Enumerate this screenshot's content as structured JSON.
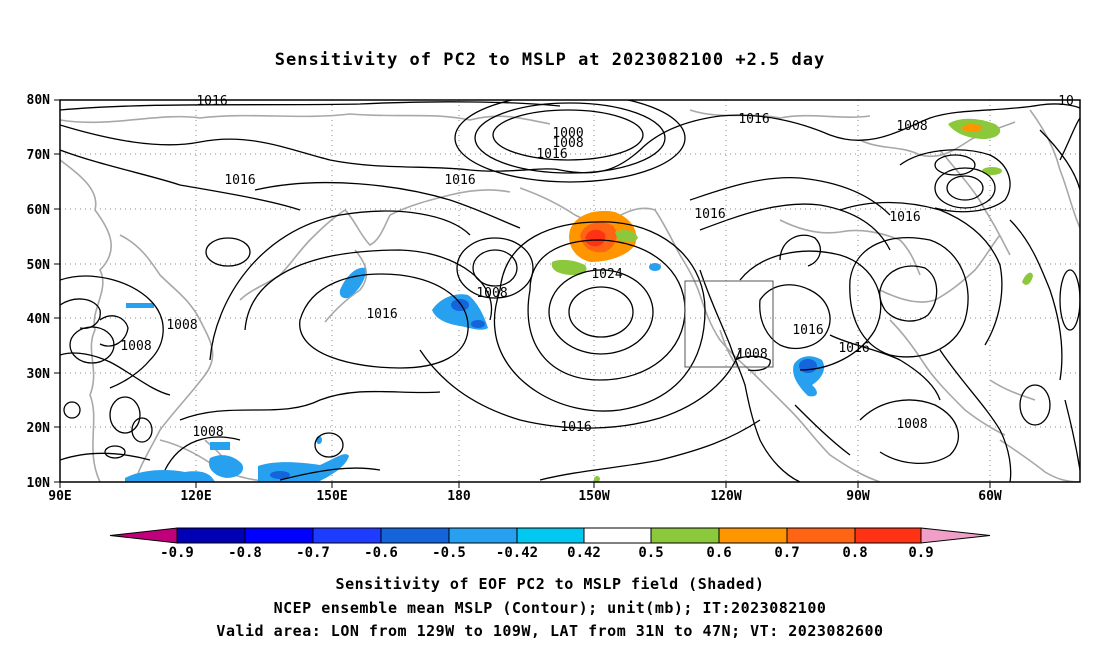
{
  "title": "Sensitivity of PC2 to MSLP at 2023082100 +2.5 day",
  "map": {
    "lat_ticks": [
      "80N",
      "70N",
      "60N",
      "50N",
      "40N",
      "30N",
      "20N",
      "10N"
    ],
    "lon_ticks": [
      "90E",
      "120E",
      "150E",
      "180",
      "150W",
      "120W",
      "90W",
      "60W"
    ],
    "contour_labels": [
      "1016",
      "1016",
      "1016",
      "1016",
      "1016",
      "1016",
      "1016",
      "1016",
      "1016",
      "1016",
      "1008",
      "1008",
      "1008",
      "1008",
      "1008",
      "1008",
      "1008",
      "1000",
      "1024",
      "10"
    ],
    "valid_area_box": {
      "lon": [
        "129W",
        "109W"
      ],
      "lat": [
        "31N",
        "47N"
      ]
    }
  },
  "colorbar": {
    "labels": [
      "-0.9",
      "-0.8",
      "-0.7",
      "-0.6",
      "-0.5",
      "-0.42",
      "0.42",
      "0.5",
      "0.6",
      "0.7",
      "0.8",
      "0.9"
    ],
    "colors": [
      "#c0007a",
      "#0000b4",
      "#0000ff",
      "#1e3cff",
      "#1464dc",
      "#28a0f0",
      "#00c8f0",
      "#ffffff",
      "#8cc83c",
      "#ff9600",
      "#ff6414",
      "#ff3214",
      "#ff0000",
      "#f0a0c8"
    ]
  },
  "captions": [
    "Sensitivity of EOF PC2 to MSLP field (Shaded)",
    "NCEP ensemble mean MSLP (Contour); unit(mb); IT:2023082100",
    "Valid area: LON from 129W to 109W, LAT from 31N to 47N; VT: 2023082600"
  ]
}
